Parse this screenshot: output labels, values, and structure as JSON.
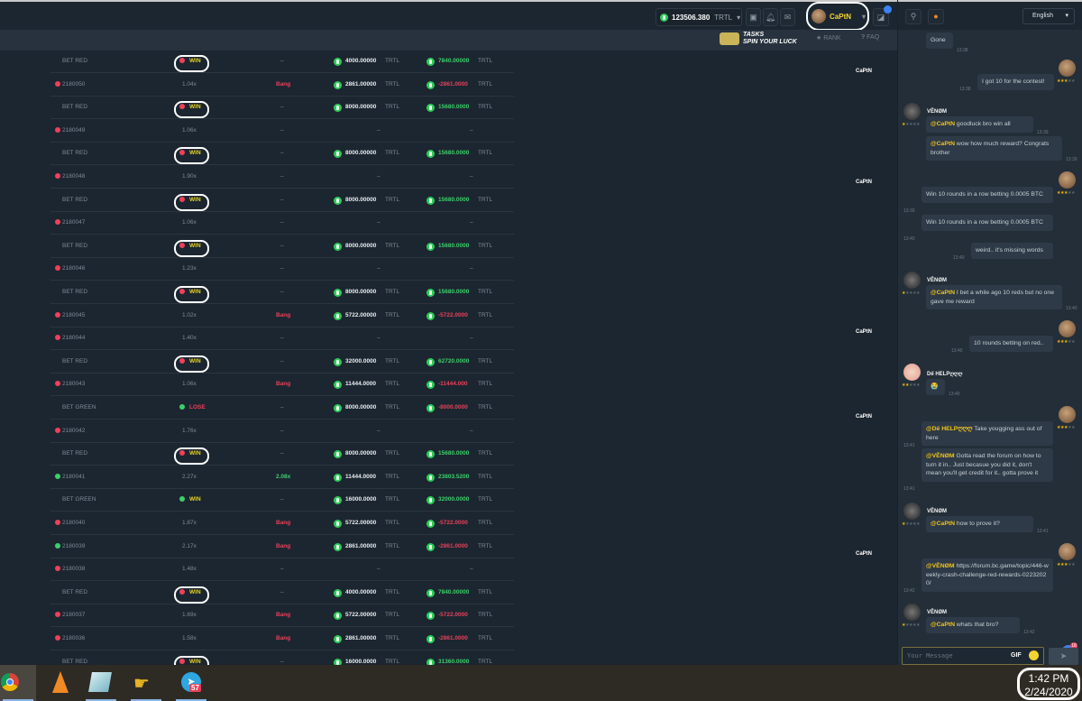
{
  "header": {
    "balance": "123506.380",
    "currency": "TRTL",
    "username": "CaPtN",
    "tasks_title": "TASKS",
    "tasks_sub": "SPIN YOUR LUCK",
    "rank": "RANK",
    "faq": "FAQ",
    "language": "English"
  },
  "table": {
    "rows": [
      {
        "type": "bet",
        "label": "BET RED",
        "color": "red",
        "result": "WIN",
        "circled": true,
        "cashout": "–",
        "bet": "4000.00000",
        "cur": "TRTL",
        "profit": "7840.00000",
        "sign": "pos"
      },
      {
        "type": "round",
        "id": "2180050",
        "color": "red",
        "mult": "1.04x",
        "cashout": "Bang",
        "bet": "2861.00000",
        "cur": "TRTL",
        "profit": "-2861.0000",
        "sign": "neg"
      },
      {
        "type": "bet",
        "label": "BET RED",
        "color": "red",
        "result": "WIN",
        "circled": true,
        "cashout": "–",
        "bet": "8000.00000",
        "cur": "TRTL",
        "profit": "15680.0000",
        "sign": "pos"
      },
      {
        "type": "round",
        "id": "2180049",
        "color": "red",
        "mult": "1.06x",
        "cashout": "–"
      },
      {
        "type": "bet",
        "label": "BET RED",
        "color": "red",
        "result": "WIN",
        "circled": true,
        "cashout": "–",
        "bet": "8000.00000",
        "cur": "TRTL",
        "profit": "15680.0000",
        "sign": "pos"
      },
      {
        "type": "round",
        "id": "2180048",
        "color": "red",
        "mult": "1.90x",
        "cashout": "–"
      },
      {
        "type": "bet",
        "label": "BET RED",
        "color": "red",
        "result": "WIN",
        "circled": true,
        "cashout": "–",
        "bet": "8000.00000",
        "cur": "TRTL",
        "profit": "15680.0000",
        "sign": "pos"
      },
      {
        "type": "round",
        "id": "2180047",
        "color": "red",
        "mult": "1.06x",
        "cashout": "–"
      },
      {
        "type": "bet",
        "label": "BET RED",
        "color": "red",
        "result": "WIN",
        "circled": true,
        "cashout": "–",
        "bet": "8000.00000",
        "cur": "TRTL",
        "profit": "15680.0000",
        "sign": "pos"
      },
      {
        "type": "round",
        "id": "2180046",
        "color": "red",
        "mult": "1.23x",
        "cashout": "–"
      },
      {
        "type": "bet",
        "label": "BET RED",
        "color": "red",
        "result": "WIN",
        "circled": true,
        "cashout": "–",
        "bet": "8000.00000",
        "cur": "TRTL",
        "profit": "15680.0000",
        "sign": "pos"
      },
      {
        "type": "round",
        "id": "2180045",
        "color": "red",
        "mult": "1.02x",
        "cashout": "Bang",
        "bet": "5722.00000",
        "cur": "TRTL",
        "profit": "-5722.0000",
        "sign": "neg"
      },
      {
        "type": "round",
        "id": "2180044",
        "color": "red",
        "mult": "1.40x",
        "cashout": "–"
      },
      {
        "type": "bet",
        "label": "BET RED",
        "color": "red",
        "result": "WIN",
        "circled": true,
        "cashout": "–",
        "bet": "32000.0000",
        "cur": "TRTL",
        "profit": "62720.0000",
        "sign": "pos"
      },
      {
        "type": "round",
        "id": "2180043",
        "color": "red",
        "mult": "1.06x",
        "cashout": "Bang",
        "bet": "11444.0000",
        "cur": "TRTL",
        "profit": "-11444.000",
        "sign": "neg"
      },
      {
        "type": "bet",
        "label": "BET GREEN",
        "color": "green",
        "result": "LOSE",
        "circled": false,
        "cashout": "–",
        "bet": "8000.00000",
        "cur": "TRTL",
        "profit": "-8000.0000",
        "sign": "neg"
      },
      {
        "type": "round",
        "id": "2180042",
        "color": "red",
        "mult": "1.76x",
        "cashout": "–"
      },
      {
        "type": "bet",
        "label": "BET RED",
        "color": "red",
        "result": "WIN",
        "circled": true,
        "cashout": "–",
        "bet": "8000.00000",
        "cur": "TRTL",
        "profit": "15680.0000",
        "sign": "pos"
      },
      {
        "type": "round",
        "id": "2180041",
        "color": "green",
        "mult": "2.27x",
        "cashout": "2.08x",
        "bet": "11444.0000",
        "cur": "TRTL",
        "profit": "23803.5200",
        "sign": "pos"
      },
      {
        "type": "bet",
        "label": "BET GREEN",
        "color": "green",
        "result": "WIN",
        "circled": false,
        "cashout": "–",
        "bet": "16000.0000",
        "cur": "TRTL",
        "profit": "32000.0000",
        "sign": "pos"
      },
      {
        "type": "round",
        "id": "2180040",
        "color": "red",
        "mult": "1.87x",
        "cashout": "Bang",
        "bet": "5722.00000",
        "cur": "TRTL",
        "profit": "-5722.0000",
        "sign": "neg"
      },
      {
        "type": "round",
        "id": "2180039",
        "color": "green",
        "mult": "2.17x",
        "cashout": "Bang",
        "bet": "2861.00000",
        "cur": "TRTL",
        "profit": "-2861.0000",
        "sign": "neg"
      },
      {
        "type": "round",
        "id": "2180038",
        "color": "red",
        "mult": "1.48x",
        "cashout": "–"
      },
      {
        "type": "bet",
        "label": "BET RED",
        "color": "red",
        "result": "WIN",
        "circled": true,
        "cashout": "–",
        "bet": "4000.00000",
        "cur": "TRTL",
        "profit": "7840.00000",
        "sign": "pos"
      },
      {
        "type": "round",
        "id": "2180037",
        "color": "red",
        "mult": "1.69x",
        "cashout": "Bang",
        "bet": "5722.00000",
        "cur": "TRTL",
        "profit": "-5722.0000",
        "sign": "neg"
      },
      {
        "type": "round",
        "id": "2180036",
        "color": "red",
        "mult": "1.58x",
        "cashout": "Bang",
        "bet": "2861.00000",
        "cur": "TRTL",
        "profit": "-2861.0000",
        "sign": "neg"
      },
      {
        "type": "bet",
        "label": "BET RED",
        "color": "red",
        "result": "WIN",
        "circled": true,
        "cashout": "–",
        "bet": "16000.0000",
        "cur": "TRTL",
        "profit": "31360.0000",
        "sign": "pos"
      }
    ]
  },
  "chat": {
    "messages": [
      {
        "user": "",
        "text": "Gone",
        "time": "13:38"
      },
      {
        "user": "CaPtN",
        "self": true,
        "stars": 3,
        "bubbles": [
          {
            "text": "I got 10 for the contest!",
            "time": "13:38"
          }
        ]
      },
      {
        "user": "VĚNØM",
        "stars": 1,
        "bubbles": [
          {
            "mention": "@CaPtN",
            "text": " goodluck bro win all",
            "time": "13:39"
          },
          {
            "mention": "@CaPtN",
            "text": " wow how much reward? Congrats brother",
            "time": "13:39"
          }
        ]
      },
      {
        "user": "CaPtN",
        "self": true,
        "stars": 3,
        "bubbles": [
          {
            "text": "Win 10 rounds in a row betting 0.0005 BTC",
            "time": "13:39"
          },
          {
            "text": "Win 10 rounds in a row betting 0.0005 BTC",
            "time": "13:40"
          },
          {
            "text": "weird.. it's missing words",
            "time": "13:40"
          }
        ]
      },
      {
        "user": "VĚNØM",
        "stars": 1,
        "bubbles": [
          {
            "mention": "@CaPtN",
            "text": " I bet a while ago 10 reds but no one gave me reward",
            "time": "13:40"
          }
        ]
      },
      {
        "user": "CaPtN",
        "self": true,
        "stars": 3,
        "bubbles": [
          {
            "text": "10 rounds betting on red..",
            "time": "13:40"
          }
        ]
      },
      {
        "user": "Dế HELPღღღ",
        "stars": 2,
        "bubbles": [
          {
            "text": "😭",
            "time": "13:40"
          }
        ]
      },
      {
        "user": "CaPtN",
        "self": true,
        "stars": 3,
        "bubbles": [
          {
            "mention": "@Dế HELPღღღ",
            "text": " Take yougging ass out of here",
            "time": "13:41"
          },
          {
            "mention": "@VĚNØM",
            "text": " Gotta read the forum on how to turn it in.. Just becasue you did it, don't mean you'll get credit for it.. gotta prove it",
            "time": "13:41"
          }
        ]
      },
      {
        "user": "VĚNØM",
        "stars": 1,
        "bubbles": [
          {
            "mention": "@CaPtN",
            "text": " how to prove it?",
            "time": "13:41"
          }
        ]
      },
      {
        "user": "CaPtN",
        "self": true,
        "stars": 3,
        "bubbles": [
          {
            "mention": "@VĚNØM",
            "text": " https://forum.bc.game/topic/446-weekly-crash-challenge-red-rewards-02232020/",
            "time": "13:42"
          }
        ]
      },
      {
        "user": "VĚNØM",
        "stars": 1,
        "bubbles": [
          {
            "mention": "@CaPtN",
            "text": " whats that bro?",
            "time": "13:42"
          }
        ]
      }
    ],
    "mention_count": "18",
    "input_placeholder": "Your Message",
    "gif_label": "GIF"
  },
  "taskbar": {
    "apps": [
      "chrome-icon",
      "vlc-icon",
      "notepad-icon",
      "hand-cursor-icon",
      "telegram-icon"
    ],
    "telegram_badge": "57",
    "time": "1:42 PM",
    "date": "2/24/2020"
  },
  "colors": {
    "win": "#e5d21e",
    "loss": "#e8405a",
    "profit": "#3bd06a",
    "red_dot": "#f0405a",
    "green_dot": "#3bd06a",
    "accent": "#3b82f6"
  }
}
